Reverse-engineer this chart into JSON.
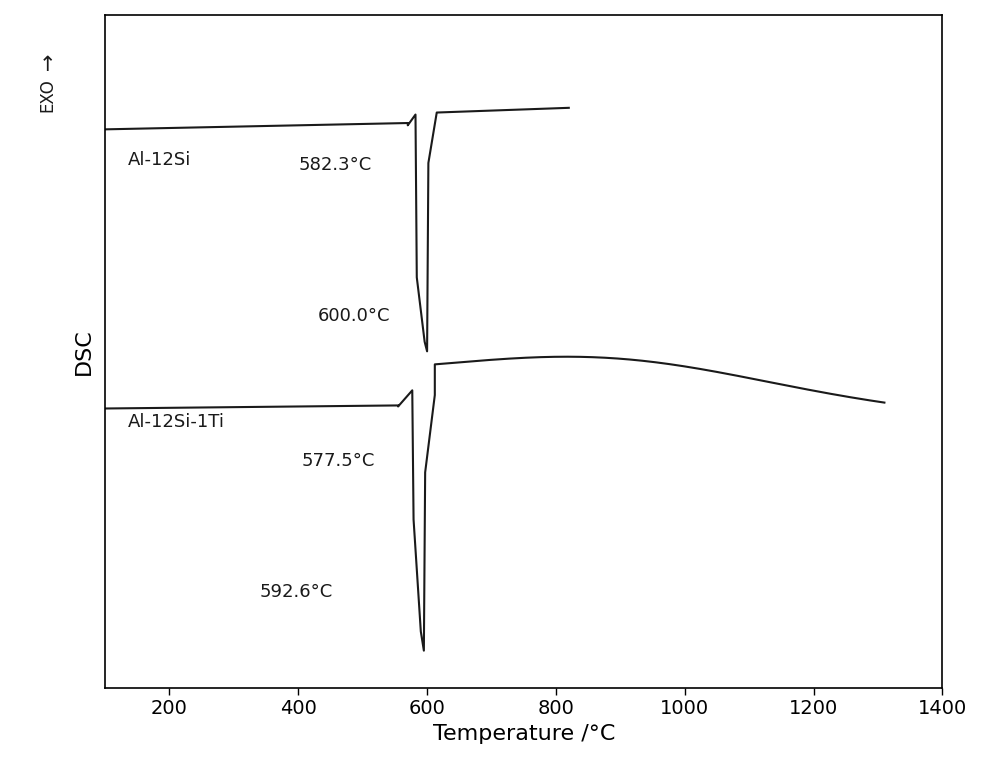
{
  "title": "",
  "xlabel": "Temperature /°C",
  "ylabel": "DSC",
  "xlim": [
    100,
    1400
  ],
  "ylim": [
    0,
    10
  ],
  "xticks": [
    200,
    400,
    600,
    800,
    1000,
    1200,
    1400
  ],
  "curve1_label": "Al-12Si",
  "curve2_label": "Al-12Si-1Ti",
  "curve1_annot1": "582.3°C",
  "curve1_annot2": "600.0°C",
  "curve2_annot1": "577.5°C",
  "curve2_annot2": "592.6°C",
  "line_color": "#1a1a1a",
  "background_color": "#ffffff",
  "font_size_labels": 16,
  "font_size_annot": 13,
  "font_size_axis": 14
}
